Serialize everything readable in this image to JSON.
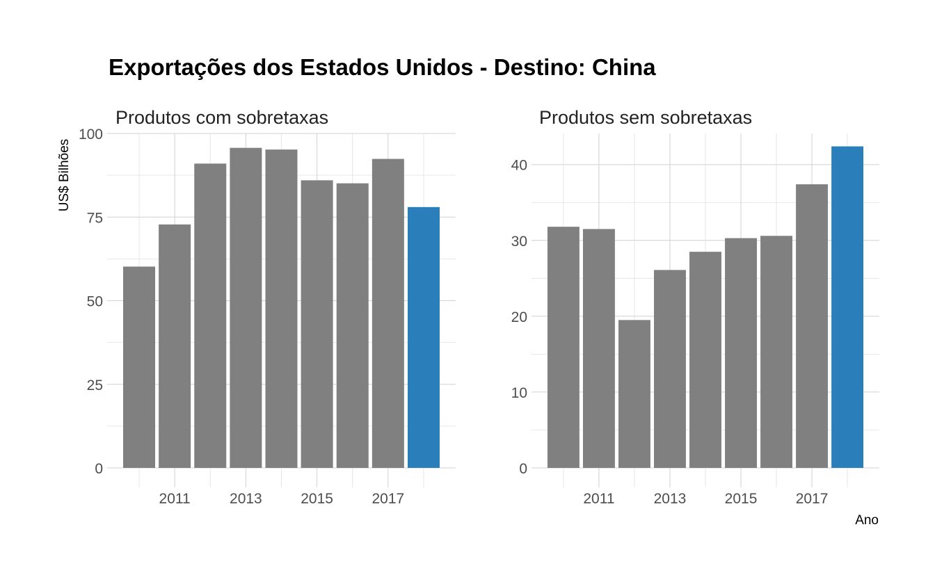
{
  "title": "Exportações dos Estados Unidos - Destino: China",
  "colors": {
    "default_bar": "#808080",
    "highlight_bar": "#2a7fba",
    "grid": "#d0d0d0"
  },
  "chart_data": [
    {
      "type": "bar",
      "subtitle": "Produtos com sobretaxas",
      "ylabel": "US$ Bilhões",
      "xlabel": "",
      "categories": [
        2010,
        2011,
        2012,
        2013,
        2014,
        2015,
        2016,
        2017,
        2018
      ],
      "values": [
        60.2,
        72.8,
        91.0,
        95.7,
        95.2,
        86.0,
        85.1,
        92.4,
        78.0
      ],
      "highlight": [
        2018
      ],
      "ylim": [
        0,
        100
      ],
      "yticks": [
        0,
        25,
        50,
        75,
        100
      ],
      "xticks": [
        2011,
        2013,
        2015,
        2017
      ],
      "grid": true
    },
    {
      "type": "bar",
      "subtitle": "Produtos sem sobretaxas",
      "ylabel": "",
      "xlabel": "Ano",
      "categories": [
        2010,
        2011,
        2012,
        2013,
        2014,
        2015,
        2016,
        2017,
        2018
      ],
      "values": [
        31.8,
        31.5,
        19.5,
        26.1,
        28.5,
        30.3,
        30.6,
        37.4,
        42.4
      ],
      "highlight": [
        2018
      ],
      "ylim": [
        0,
        44.1
      ],
      "yticks": [
        0,
        10,
        20,
        30,
        40
      ],
      "xticks": [
        2011,
        2013,
        2015,
        2017
      ],
      "grid": true
    }
  ]
}
